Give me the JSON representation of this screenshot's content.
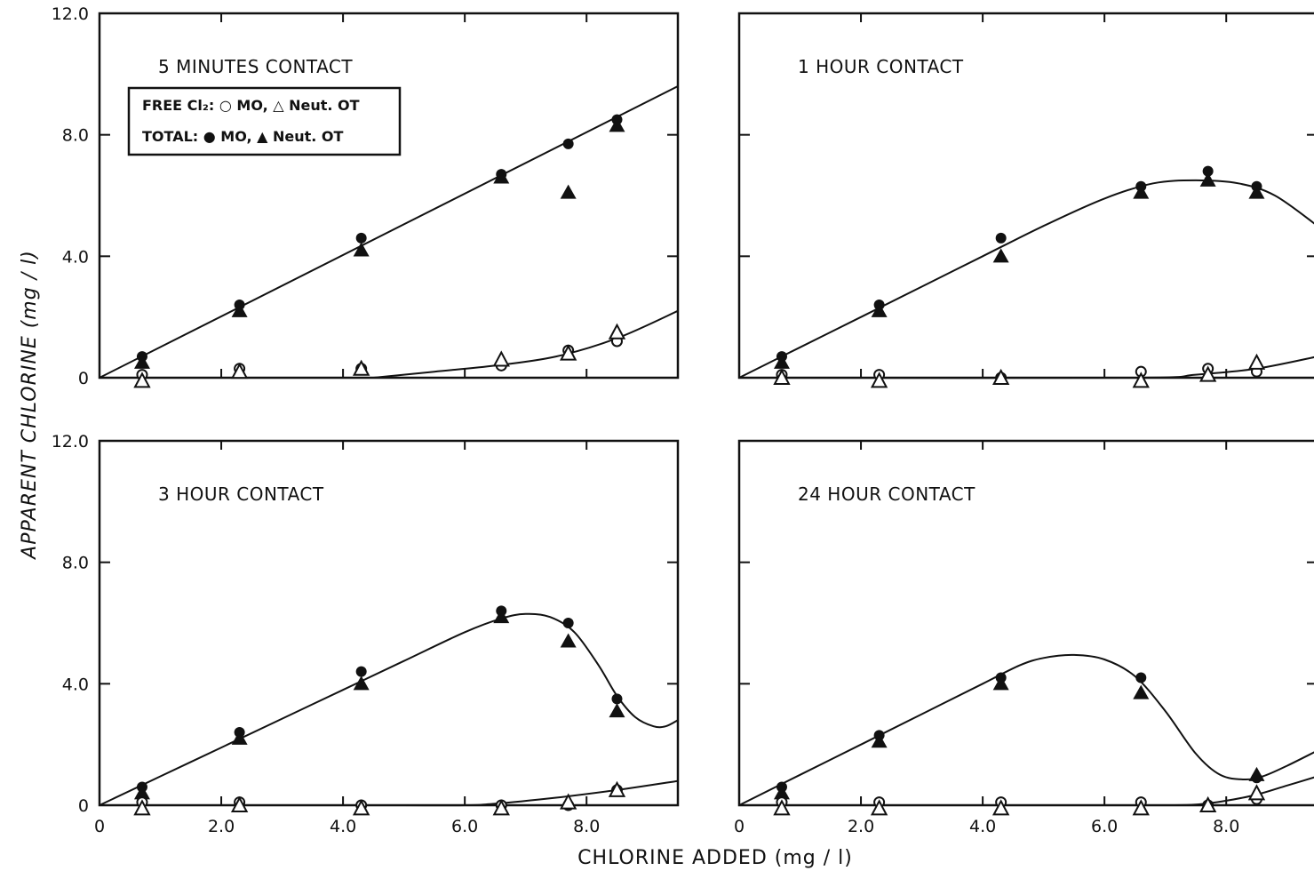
{
  "figure": {
    "xlabel": "CHLORINE ADDED (mg / l)",
    "ylabel": "APPARENT CHLORINE (mg / l)"
  },
  "legend": {
    "free_text": "FREE Cl₂: ○ MO, △ Neut. OT",
    "total_text": "TOTAL: ● MO, ▲ Neut. OT"
  },
  "chart_data": [
    {
      "type": "scatter",
      "title": "5 MINUTES CONTACT",
      "xlabel": "",
      "ylabel": "",
      "xlim": [
        0,
        9.5
      ],
      "ylim": [
        0,
        12
      ],
      "xticks": [
        0,
        2,
        4,
        6,
        8
      ],
      "xtick_labels": [],
      "yticks": [
        0,
        4,
        8,
        12
      ],
      "ytick_labels": [
        "0",
        "4.0",
        "8.0",
        "12.0"
      ],
      "series": [
        {
          "name": "TOTAL: MO",
          "marker": "filled-circle",
          "x": [
            0.7,
            2.3,
            4.3,
            6.6,
            7.7,
            8.5
          ],
          "y": [
            0.7,
            2.4,
            4.6,
            6.7,
            7.7,
            8.5
          ]
        },
        {
          "name": "TOTAL: Neut. OT",
          "marker": "filled-triangle",
          "x": [
            0.7,
            2.3,
            4.3,
            6.6,
            7.7,
            8.5
          ],
          "y": [
            0.5,
            2.2,
            4.2,
            6.6,
            6.1,
            8.3
          ]
        },
        {
          "name": "FREE Cl2: MO",
          "marker": "open-circle",
          "x": [
            0.7,
            2.3,
            4.3,
            6.6,
            7.7,
            8.5
          ],
          "y": [
            0.1,
            0.3,
            0.3,
            0.4,
            0.9,
            1.2
          ]
        },
        {
          "name": "FREE Cl2: Neut. OT",
          "marker": "open-triangle",
          "x": [
            0.7,
            2.3,
            4.3,
            6.6,
            7.7,
            8.5
          ],
          "y": [
            -0.1,
            0.2,
            0.3,
            0.6,
            0.8,
            1.5
          ]
        }
      ],
      "curves": [
        {
          "x": [
            0,
            9.5
          ],
          "y": [
            0,
            9.6
          ]
        },
        {
          "x": [
            4.5,
            5.5,
            6.5,
            7.5,
            8.5,
            9.5
          ],
          "y": [
            0,
            0.2,
            0.4,
            0.7,
            1.3,
            2.2
          ]
        }
      ]
    },
    {
      "type": "scatter",
      "title": "1 HOUR CONTACT",
      "xlabel": "",
      "ylabel": "",
      "xlim": [
        0,
        9.5
      ],
      "ylim": [
        0,
        12
      ],
      "xticks": [
        0,
        2,
        4,
        6,
        8
      ],
      "xtick_labels": [],
      "yticks": [
        0,
        4,
        8,
        12
      ],
      "ytick_labels": [],
      "series": [
        {
          "name": "TOTAL: MO",
          "marker": "filled-circle",
          "x": [
            0.7,
            2.3,
            4.3,
            6.6,
            7.7,
            8.5
          ],
          "y": [
            0.7,
            2.4,
            4.6,
            6.3,
            6.8,
            6.3
          ]
        },
        {
          "name": "TOTAL: Neut. OT",
          "marker": "filled-triangle",
          "x": [
            0.7,
            2.3,
            4.3,
            6.6,
            7.7,
            8.5
          ],
          "y": [
            0.5,
            2.2,
            4.0,
            6.1,
            6.5,
            6.1
          ]
        },
        {
          "name": "FREE Cl2: MO",
          "marker": "open-circle",
          "x": [
            0.7,
            2.3,
            4.3,
            6.6,
            7.7,
            8.5
          ],
          "y": [
            0.1,
            0.1,
            0.0,
            0.2,
            0.3,
            0.2
          ]
        },
        {
          "name": "FREE Cl2: Neut. OT",
          "marker": "open-triangle",
          "x": [
            0.7,
            2.3,
            4.3,
            6.6,
            7.7,
            8.5
          ],
          "y": [
            0.0,
            -0.1,
            0.0,
            -0.1,
            0.1,
            0.5
          ]
        }
      ],
      "curves": [
        {
          "x": [
            0,
            1,
            2,
            3,
            4,
            5,
            6,
            6.8,
            7.5,
            8.2,
            8.8,
            9.5
          ],
          "y": [
            0,
            1.0,
            2.0,
            3.0,
            4.0,
            5.0,
            5.9,
            6.4,
            6.5,
            6.4,
            6.0,
            5.0
          ]
        },
        {
          "x": [
            0,
            1,
            6.5,
            7.5,
            8.5,
            9.5
          ],
          "y": [
            0,
            0,
            0,
            0.1,
            0.3,
            0.7
          ]
        }
      ]
    },
    {
      "type": "scatter",
      "title": "3 HOUR CONTACT",
      "xlabel": "",
      "ylabel": "",
      "xlim": [
        0,
        9.5
      ],
      "ylim": [
        0,
        12
      ],
      "xticks": [
        0,
        2,
        4,
        6,
        8
      ],
      "xtick_labels": [
        "0",
        "2.0",
        "4.0",
        "6.0",
        "8.0"
      ],
      "yticks": [
        0,
        4,
        8,
        12
      ],
      "ytick_labels": [
        "0",
        "4.0",
        "8.0",
        "12.0"
      ],
      "series": [
        {
          "name": "TOTAL: MO",
          "marker": "filled-circle",
          "x": [
            0.7,
            2.3,
            4.3,
            6.6,
            7.7,
            8.5
          ],
          "y": [
            0.6,
            2.4,
            4.4,
            6.4,
            6.0,
            3.5
          ]
        },
        {
          "name": "TOTAL: Neut. OT",
          "marker": "filled-triangle",
          "x": [
            0.7,
            2.3,
            4.3,
            6.6,
            7.7,
            8.5
          ],
          "y": [
            0.4,
            2.2,
            4.0,
            6.2,
            5.4,
            3.1
          ]
        },
        {
          "name": "FREE Cl2: MO",
          "marker": "open-circle",
          "x": [
            0.7,
            2.3,
            4.3,
            6.6,
            7.7,
            8.5
          ],
          "y": [
            0.1,
            0.1,
            0.0,
            0.0,
            0.0,
            0.5
          ]
        },
        {
          "name": "FREE Cl2: Neut. OT",
          "marker": "open-triangle",
          "x": [
            0.7,
            2.3,
            4.3,
            6.6,
            7.7,
            8.5
          ],
          "y": [
            -0.1,
            0.0,
            -0.1,
            -0.1,
            0.1,
            0.5
          ]
        }
      ],
      "curves": [
        {
          "x": [
            0,
            1,
            2,
            3,
            4,
            5,
            6,
            6.6,
            7.0,
            7.4,
            7.8,
            8.2,
            8.5,
            8.8,
            9.1,
            9.3,
            9.5
          ],
          "y": [
            0,
            0.95,
            1.9,
            2.85,
            3.8,
            4.75,
            5.7,
            6.15,
            6.3,
            6.2,
            5.7,
            4.6,
            3.6,
            2.9,
            2.6,
            2.6,
            2.8
          ]
        },
        {
          "x": [
            0,
            1,
            2,
            3,
            4,
            5,
            6.0,
            6.5,
            7.5,
            8.5,
            9.5
          ],
          "y": [
            0,
            0,
            0,
            0,
            0,
            0,
            0,
            0.05,
            0.25,
            0.5,
            0.8
          ]
        }
      ]
    },
    {
      "type": "scatter",
      "title": "24 HOUR CONTACT",
      "xlabel": "",
      "ylabel": "",
      "xlim": [
        0,
        9.5
      ],
      "ylim": [
        0,
        12
      ],
      "xticks": [
        0,
        2,
        4,
        6,
        8
      ],
      "xtick_labels": [
        "0",
        "2.0",
        "4.0",
        "6.0",
        "8.0"
      ],
      "yticks": [
        0,
        4,
        8,
        12
      ],
      "ytick_labels": [],
      "series": [
        {
          "name": "TOTAL: MO",
          "marker": "filled-circle",
          "x": [
            0.7,
            2.3,
            4.3,
            6.6,
            8.5
          ],
          "y": [
            0.6,
            2.3,
            4.2,
            4.2,
            0.9
          ]
        },
        {
          "name": "TOTAL: Neut. OT",
          "marker": "filled-triangle",
          "x": [
            0.7,
            2.3,
            4.3,
            6.6,
            8.5
          ],
          "y": [
            0.4,
            2.1,
            4.0,
            3.7,
            1.0
          ]
        },
        {
          "name": "FREE Cl2: MO",
          "marker": "open-circle",
          "x": [
            0.7,
            2.3,
            4.3,
            6.6,
            7.7,
            8.5
          ],
          "y": [
            0.1,
            0.1,
            0.1,
            0.1,
            0.0,
            0.2
          ]
        },
        {
          "name": "FREE Cl2: Neut. OT",
          "marker": "open-triangle",
          "x": [
            0.7,
            2.3,
            4.3,
            6.6,
            7.7,
            8.5
          ],
          "y": [
            -0.1,
            -0.1,
            -0.1,
            -0.1,
            0.0,
            0.4
          ]
        }
      ],
      "curves": [
        {
          "x": [
            0,
            1,
            2,
            3,
            4,
            4.6,
            5.0,
            5.5,
            6.0,
            6.5,
            7.0,
            7.5,
            7.9,
            8.3,
            8.6,
            9.0,
            9.5
          ],
          "y": [
            0,
            1.0,
            2.0,
            3.0,
            4.0,
            4.6,
            4.85,
            4.95,
            4.8,
            4.25,
            3.1,
            1.7,
            1.0,
            0.85,
            0.95,
            1.3,
            1.8
          ]
        },
        {
          "x": [
            0,
            1,
            2,
            3,
            4,
            5,
            6,
            7,
            7.5,
            8.0,
            8.5,
            9.0,
            9.5
          ],
          "y": [
            0,
            0,
            0,
            0,
            0,
            0,
            0,
            0,
            0.02,
            0.15,
            0.35,
            0.65,
            0.95
          ]
        }
      ]
    }
  ]
}
